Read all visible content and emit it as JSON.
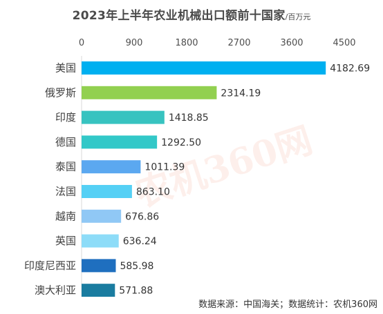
{
  "chart_data": {
    "type": "bar",
    "orientation": "horizontal",
    "title": "2023年上半年农业机械出口额前十国家",
    "unit": "/百万元",
    "categories": [
      "美国",
      "俄罗斯",
      "印度",
      "德国",
      "泰国",
      "法国",
      "越南",
      "英国",
      "印度尼西亚",
      "澳大利亚"
    ],
    "values": [
      4182.69,
      2314.19,
      1418.85,
      1292.5,
      1011.39,
      863.1,
      676.86,
      636.24,
      585.98,
      571.88
    ],
    "value_labels": [
      "4182.69",
      "2314.19",
      "1418.85",
      "1292.50",
      "1011.39",
      "863.10",
      "676.86",
      "636.24",
      "585.98",
      "571.88"
    ],
    "colors": [
      "#00b0f0",
      "#92d050",
      "#37c3c0",
      "#32c8c8",
      "#5ba8f0",
      "#55d0f5",
      "#90c8f5",
      "#8ddcf8",
      "#1f6fbf",
      "#1a7ca0"
    ],
    "xlim": [
      0,
      4500
    ],
    "xticks": [
      "0",
      "900",
      "1800",
      "2700",
      "3600",
      "4500"
    ],
    "xtick_values": [
      0,
      900,
      1800,
      2700,
      3600,
      4500
    ],
    "xaxis_position": "top",
    "grid": false
  },
  "footer": {
    "source": "数据来源：中国海关；数据统计：农机360网"
  },
  "watermark": {
    "text": "农机360网"
  }
}
